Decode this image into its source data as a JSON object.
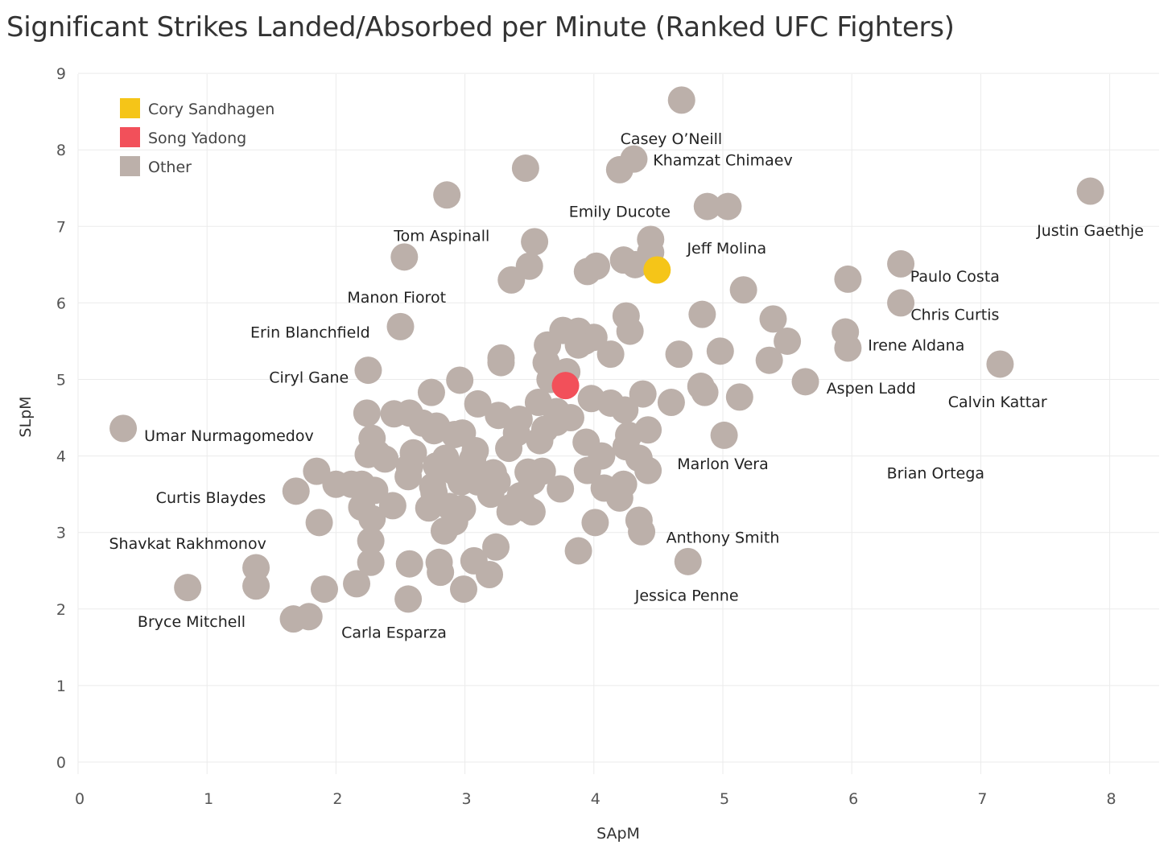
{
  "chart_data": {
    "type": "scatter",
    "title": "Significant Strikes Landed/Absorbed per Minute (Ranked UFC Fighters)",
    "xlabel": "SApM",
    "ylabel": "SLpM",
    "xlim": [
      0,
      8.3
    ],
    "ylim": [
      0,
      9.15
    ],
    "xticks": [
      0,
      1,
      2,
      3,
      4,
      5,
      6,
      7,
      8
    ],
    "yticks": [
      0,
      1,
      2,
      3,
      4,
      5,
      6,
      7,
      8,
      9
    ],
    "grid": true,
    "legend_position": "top-left",
    "legend": [
      {
        "key": "cory",
        "label": "Cory Sandhagen",
        "color": "#f5c518"
      },
      {
        "key": "song",
        "label": "Song Yadong",
        "color": "#f2505a"
      },
      {
        "key": "other",
        "label": "Other",
        "color": "#bcb0aa"
      }
    ],
    "colors": {
      "cory": "#f5c518",
      "song": "#f2505a",
      "other": "#bcb0aa"
    },
    "labels": [
      {
        "text": "Casey O’Neill",
        "x": 4.6,
        "y": 8.15
      },
      {
        "text": "Khamzat Chimaev",
        "x": 5.0,
        "y": 7.87
      },
      {
        "text": "Emily Ducote",
        "x": 4.2,
        "y": 7.2
      },
      {
        "text": "Justin Gaethje",
        "x": 7.85,
        "y": 6.95
      },
      {
        "text": "Tom Aspinall",
        "x": 2.82,
        "y": 6.88
      },
      {
        "text": "Jeff Molina",
        "x": 5.03,
        "y": 6.72
      },
      {
        "text": "Paulo Costa",
        "x": 6.8,
        "y": 6.35
      },
      {
        "text": "Manon Fiorot",
        "x": 2.47,
        "y": 6.08
      },
      {
        "text": "Chris Curtis",
        "x": 6.8,
        "y": 5.85
      },
      {
        "text": "Erin Blanchfield",
        "x": 1.8,
        "y": 5.62
      },
      {
        "text": "Irene Aldana",
        "x": 6.5,
        "y": 5.45
      },
      {
        "text": "Ciryl Gane",
        "x": 1.79,
        "y": 5.03
      },
      {
        "text": "Aspen Ladd",
        "x": 6.15,
        "y": 4.89
      },
      {
        "text": "Calvin Kattar",
        "x": 7.13,
        "y": 4.71
      },
      {
        "text": "Umar Nurmagomedov",
        "x": 1.17,
        "y": 4.27
      },
      {
        "text": "Marlon Vera",
        "x": 5.0,
        "y": 3.9
      },
      {
        "text": "Brian Ortega",
        "x": 6.65,
        "y": 3.78
      },
      {
        "text": "Curtis Blaydes",
        "x": 1.03,
        "y": 3.46
      },
      {
        "text": "Shavkat Rakhmonov",
        "x": 0.85,
        "y": 2.86
      },
      {
        "text": "Anthony Smith",
        "x": 5.0,
        "y": 2.94
      },
      {
        "text": "Jessica Penne",
        "x": 4.72,
        "y": 2.18
      },
      {
        "text": "Bryce Mitchell",
        "x": 0.88,
        "y": 1.84
      },
      {
        "text": "Carla Esparza",
        "x": 2.45,
        "y": 1.7
      }
    ],
    "series": [
      {
        "name": "Cory Sandhagen",
        "key": "cory",
        "points": [
          [
            4.49,
            6.43
          ]
        ]
      },
      {
        "name": "Song Yadong",
        "key": "song",
        "points": [
          [
            3.78,
            4.92
          ]
        ]
      },
      {
        "name": "Other",
        "key": "other",
        "points": [
          [
            4.68,
            8.65
          ],
          [
            4.31,
            7.88
          ],
          [
            4.2,
            7.74
          ],
          [
            3.47,
            7.76
          ],
          [
            2.86,
            7.41
          ],
          [
            7.85,
            7.46
          ],
          [
            4.88,
            7.26
          ],
          [
            5.04,
            7.26
          ],
          [
            4.44,
            6.83
          ],
          [
            4.44,
            6.66
          ],
          [
            2.53,
            6.6
          ],
          [
            3.54,
            6.8
          ],
          [
            3.5,
            6.48
          ],
          [
            3.36,
            6.3
          ],
          [
            3.95,
            6.41
          ],
          [
            4.02,
            6.48
          ],
          [
            4.23,
            6.56
          ],
          [
            4.32,
            6.5
          ],
          [
            6.38,
            6.51
          ],
          [
            5.97,
            6.31
          ],
          [
            5.16,
            6.17
          ],
          [
            6.38,
            6.0
          ],
          [
            4.25,
            5.83
          ],
          [
            4.84,
            5.85
          ],
          [
            5.39,
            5.79
          ],
          [
            2.5,
            5.69
          ],
          [
            5.95,
            5.62
          ],
          [
            4.28,
            5.63
          ],
          [
            3.76,
            5.64
          ],
          [
            3.88,
            5.63
          ],
          [
            3.93,
            5.5
          ],
          [
            4.0,
            5.55
          ],
          [
            5.97,
            5.41
          ],
          [
            5.5,
            5.5
          ],
          [
            3.64,
            5.45
          ],
          [
            3.88,
            5.45
          ],
          [
            4.13,
            5.33
          ],
          [
            4.66,
            5.33
          ],
          [
            4.98,
            5.37
          ],
          [
            3.28,
            5.28
          ],
          [
            3.28,
            5.22
          ],
          [
            5.36,
            5.25
          ],
          [
            7.15,
            5.2
          ],
          [
            2.25,
            5.12
          ],
          [
            3.63,
            5.22
          ],
          [
            3.79,
            5.1
          ],
          [
            3.66,
            5.0
          ],
          [
            2.96,
            4.99
          ],
          [
            5.64,
            4.97
          ],
          [
            4.83,
            4.91
          ],
          [
            4.86,
            4.83
          ],
          [
            2.74,
            4.83
          ],
          [
            4.38,
            4.81
          ],
          [
            3.98,
            4.75
          ],
          [
            4.13,
            4.69
          ],
          [
            5.13,
            4.77
          ],
          [
            4.6,
            4.7
          ],
          [
            3.1,
            4.68
          ],
          [
            3.57,
            4.7
          ],
          [
            4.24,
            4.6
          ],
          [
            3.71,
            4.58
          ],
          [
            3.82,
            4.5
          ],
          [
            2.24,
            4.56
          ],
          [
            2.45,
            4.55
          ],
          [
            2.57,
            4.56
          ],
          [
            3.26,
            4.53
          ],
          [
            3.42,
            4.48
          ],
          [
            2.67,
            4.43
          ],
          [
            2.78,
            4.39
          ],
          [
            3.71,
            4.44
          ],
          [
            4.42,
            4.34
          ],
          [
            2.76,
            4.33
          ],
          [
            3.62,
            4.35
          ],
          [
            3.4,
            4.3
          ],
          [
            2.92,
            4.28
          ],
          [
            2.98,
            4.3
          ],
          [
            4.27,
            4.27
          ],
          [
            5.01,
            4.27
          ],
          [
            2.28,
            4.23
          ],
          [
            3.58,
            4.2
          ],
          [
            3.94,
            4.18
          ],
          [
            2.25,
            4.02
          ],
          [
            2.32,
            4.03
          ],
          [
            2.6,
            4.04
          ],
          [
            3.08,
            4.07
          ],
          [
            3.34,
            4.1
          ],
          [
            4.25,
            4.12
          ],
          [
            2.38,
            3.96
          ],
          [
            2.85,
            3.97
          ],
          [
            3.06,
            3.96
          ],
          [
            4.06,
            4.0
          ],
          [
            4.35,
            3.97
          ],
          [
            1.85,
            3.8
          ],
          [
            2.57,
            3.86
          ],
          [
            2.78,
            3.87
          ],
          [
            2.56,
            3.73
          ],
          [
            2.92,
            3.79
          ],
          [
            3.22,
            3.78
          ],
          [
            3.49,
            3.79
          ],
          [
            3.6,
            3.8
          ],
          [
            3.95,
            3.81
          ],
          [
            4.42,
            3.81
          ],
          [
            2.0,
            3.63
          ],
          [
            2.12,
            3.63
          ],
          [
            2.2,
            3.63
          ],
          [
            2.75,
            3.6
          ],
          [
            2.97,
            3.66
          ],
          [
            3.1,
            3.66
          ],
          [
            3.25,
            3.66
          ],
          [
            3.52,
            3.67
          ],
          [
            3.74,
            3.57
          ],
          [
            1.69,
            3.54
          ],
          [
            2.3,
            3.55
          ],
          [
            2.76,
            3.52
          ],
          [
            3.2,
            3.5
          ],
          [
            3.43,
            3.48
          ],
          [
            4.08,
            3.58
          ],
          [
            4.23,
            3.63
          ],
          [
            2.2,
            3.33
          ],
          [
            2.44,
            3.35
          ],
          [
            2.72,
            3.32
          ],
          [
            2.88,
            3.34
          ],
          [
            2.98,
            3.31
          ],
          [
            3.36,
            3.33
          ],
          [
            3.48,
            3.31
          ],
          [
            4.2,
            3.45
          ],
          [
            2.28,
            3.18
          ],
          [
            2.92,
            3.14
          ],
          [
            3.35,
            3.27
          ],
          [
            3.52,
            3.27
          ],
          [
            1.87,
            3.13
          ],
          [
            2.84,
            3.02
          ],
          [
            4.01,
            3.13
          ],
          [
            4.35,
            3.16
          ],
          [
            4.37,
            3.01
          ],
          [
            2.27,
            2.89
          ],
          [
            3.24,
            2.81
          ],
          [
            3.88,
            2.76
          ],
          [
            4.73,
            2.62
          ],
          [
            2.27,
            2.61
          ],
          [
            2.57,
            2.59
          ],
          [
            2.8,
            2.61
          ],
          [
            2.81,
            2.48
          ],
          [
            3.07,
            2.63
          ],
          [
            3.19,
            2.45
          ],
          [
            1.38,
            2.54
          ],
          [
            0.85,
            2.28
          ],
          [
            1.38,
            2.3
          ],
          [
            1.91,
            2.26
          ],
          [
            2.16,
            2.33
          ],
          [
            2.99,
            2.26
          ],
          [
            2.56,
            2.13
          ],
          [
            1.67,
            1.87
          ],
          [
            1.79,
            1.9
          ],
          [
            0.35,
            4.36
          ]
        ]
      }
    ]
  }
}
